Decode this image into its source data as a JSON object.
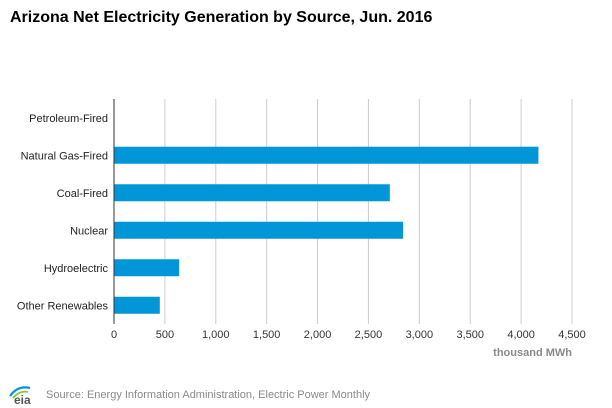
{
  "chart_data": {
    "type": "bar",
    "orientation": "horizontal",
    "title": "Arizona Net Electricity Generation by Source, Jun. 2016",
    "categories": [
      "Petroleum-Fired",
      "Natural Gas-Fired",
      "Coal-Fired",
      "Nuclear",
      "Hydroelectric",
      "Other Renewables"
    ],
    "values": [
      2,
      4170,
      2710,
      2840,
      640,
      450
    ],
    "xlabel": "thousand MWh",
    "ylabel": "",
    "xlim": [
      0,
      4500
    ],
    "ticks": [
      0,
      500,
      1000,
      1500,
      2000,
      2500,
      3000,
      3500,
      4000,
      4500
    ],
    "tick_labels": [
      "0",
      "500",
      "1,000",
      "1,500",
      "2,000",
      "2,500",
      "3,000",
      "3,500",
      "4,000",
      "4,500"
    ],
    "grid": true,
    "colors": {
      "bar": "#0096d7",
      "grid": "#cccccc",
      "axis": "#333333"
    }
  },
  "footer": {
    "logo_icon": "eia-logo",
    "source": "Source: Energy Information Administration, Electric Power Monthly"
  }
}
